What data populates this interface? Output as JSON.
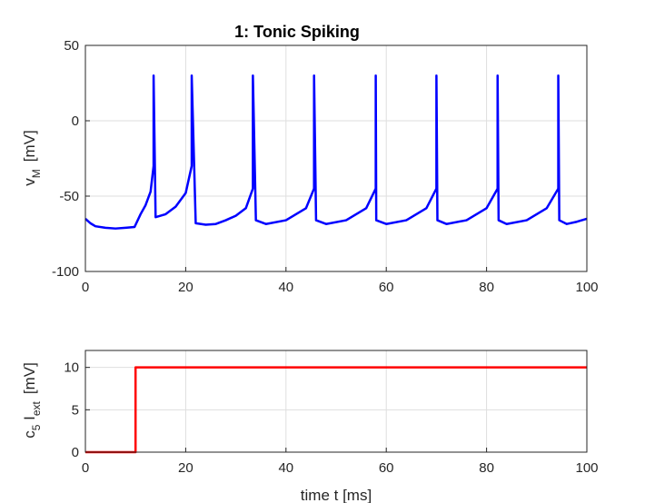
{
  "chart_data": [
    {
      "type": "line",
      "title": "1: Tonic Spiking",
      "xlabel": "",
      "ylabel": {
        "main": "v",
        "sub": "M",
        "unit": "[mV]"
      },
      "xlim": [
        0,
        100
      ],
      "ylim": [
        -100,
        50
      ],
      "xticks": [
        "0",
        "20",
        "40",
        "60",
        "80",
        "100"
      ],
      "yticks": [
        "-100",
        "-50",
        "0",
        "50"
      ],
      "grid": true,
      "line_color": "#0000ff",
      "spike_times": [
        13.6,
        21.2,
        33.4,
        45.6,
        57.9,
        70.0,
        82.2,
        94.3
      ],
      "spike_peak": 30,
      "reset_voltage": -65,
      "series": [
        {
          "x": [
            0,
            1,
            2,
            4,
            6,
            8,
            9.8,
            11,
            12,
            13,
            13.6,
            13.6,
            14,
            16,
            18,
            20,
            21.2,
            21.2,
            22,
            24,
            26,
            28,
            30,
            32,
            33.4,
            33.4,
            34,
            36,
            40,
            44,
            45.6,
            45.6,
            46,
            48,
            52,
            56,
            57.9,
            57.9,
            58,
            60,
            64,
            68,
            70.0,
            70.0,
            70.2,
            72,
            76,
            80,
            82.2,
            82.2,
            82.4,
            84,
            88,
            92,
            94.3,
            94.3,
            94.5,
            96,
            98,
            100
          ],
          "y": [
            -65,
            -68,
            -70,
            -71,
            -71.5,
            -71,
            -70.5,
            -62,
            -56,
            -47,
            -30,
            30,
            -64,
            -62,
            -57,
            -48,
            -30,
            30,
            -68,
            -69,
            -68.5,
            -66,
            -63,
            -58,
            -45,
            30,
            -66,
            -68.5,
            -66,
            -58,
            -45,
            30,
            -66,
            -68.5,
            -66,
            -58,
            -45,
            30,
            -66,
            -68.5,
            -66,
            -58,
            -45,
            30,
            -66,
            -68.5,
            -66,
            -58,
            -45,
            30,
            -66,
            -68.5,
            -66,
            -58,
            -45,
            30,
            -66,
            -68.5,
            -67,
            -65
          ]
        }
      ]
    },
    {
      "type": "line",
      "title": "",
      "xlabel": "time t  [ms]",
      "ylabel": {
        "pre": "c",
        "pre_sub": "5",
        "main": " I",
        "sub": "ext",
        "unit": "[mV]"
      },
      "xlim": [
        0,
        100
      ],
      "ylim": [
        0,
        12
      ],
      "xticks": [
        "0",
        "20",
        "40",
        "60",
        "80",
        "100"
      ],
      "yticks": [
        "0",
        "5",
        "10"
      ],
      "grid": true,
      "line_color": "#ff0000",
      "series": [
        {
          "x": [
            0,
            10,
            10,
            100
          ],
          "y": [
            0,
            0,
            10,
            10
          ]
        }
      ]
    }
  ]
}
